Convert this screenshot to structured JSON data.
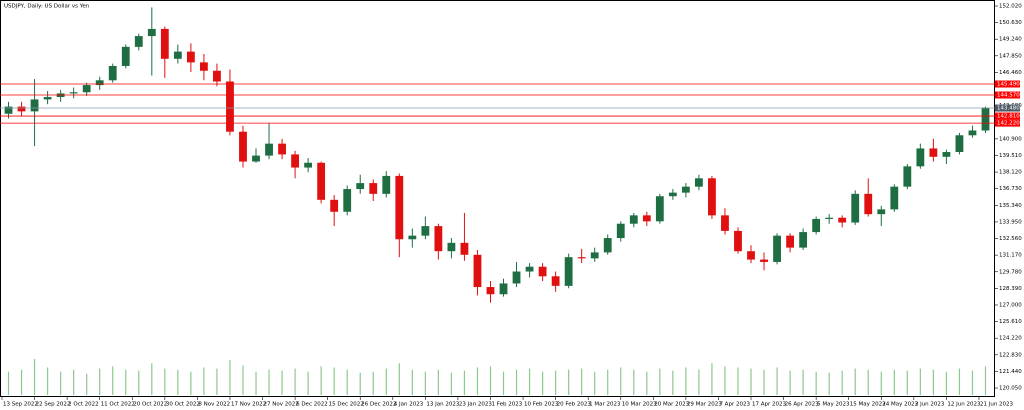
{
  "chart_data": {
    "type": "candlestick",
    "title": "USDJPY, Daily: US Dollar vs Yen",
    "ylim": [
      119.3,
      152.52
    ],
    "yticks": [
      {
        "value": 152.02,
        "label": "152.020"
      },
      {
        "value": 150.63,
        "label": "150.630"
      },
      {
        "value": 149.24,
        "label": "149.240"
      },
      {
        "value": 147.85,
        "label": "147.850"
      },
      {
        "value": 146.46,
        "label": "146.460"
      },
      {
        "value": 143.68,
        "label": "143.680"
      },
      {
        "value": 140.9,
        "label": "140.900"
      },
      {
        "value": 139.51,
        "label": "139.510"
      },
      {
        "value": 138.12,
        "label": "138.120"
      },
      {
        "value": 136.73,
        "label": "136.730"
      },
      {
        "value": 135.34,
        "label": "135.340"
      },
      {
        "value": 133.95,
        "label": "133.950"
      },
      {
        "value": 132.56,
        "label": "132.560"
      },
      {
        "value": 131.17,
        "label": "131.170"
      },
      {
        "value": 129.78,
        "label": "129.780"
      },
      {
        "value": 128.39,
        "label": "128.390"
      },
      {
        "value": 127,
        "label": "127.000"
      },
      {
        "value": 125.61,
        "label": "125.610"
      },
      {
        "value": 124.22,
        "label": "124.220"
      },
      {
        "value": 122.83,
        "label": "122.830"
      },
      {
        "value": 121.44,
        "label": "121.440"
      },
      {
        "value": 120.05,
        "label": "120.050"
      }
    ],
    "xlim": [
      0,
      76
    ],
    "xticks": [
      {
        "value": 0,
        "label": "13 Sep 2022"
      },
      {
        "value": 2.5,
        "label": "22 Sep 2022"
      },
      {
        "value": 5,
        "label": "2 Oct 2022"
      },
      {
        "value": 7.5,
        "label": "11 Oct 2022"
      },
      {
        "value": 10,
        "label": "20 Oct 2022"
      },
      {
        "value": 12.5,
        "label": "30 Oct 2022"
      },
      {
        "value": 15,
        "label": "8 Nov 2022"
      },
      {
        "value": 17.5,
        "label": "17 Nov 2022"
      },
      {
        "value": 20,
        "label": "27 Nov 2022"
      },
      {
        "value": 22.5,
        "label": "6 Dec 2022"
      },
      {
        "value": 25,
        "label": "15 Dec 2022"
      },
      {
        "value": 27.5,
        "label": "26 Dec 2022"
      },
      {
        "value": 30,
        "label": "4 Jan 2023"
      },
      {
        "value": 32.5,
        "label": "13 Jan 2023"
      },
      {
        "value": 35,
        "label": "23 Jan 2023"
      },
      {
        "value": 37.5,
        "label": "1 Feb 2023"
      },
      {
        "value": 40,
        "label": "10 Feb 2023"
      },
      {
        "value": 42.5,
        "label": "20 Feb 2023"
      },
      {
        "value": 45,
        "label": "1 Mar 2023"
      },
      {
        "value": 47.5,
        "label": "10 Mar 2023"
      },
      {
        "value": 50,
        "label": "20 Mar 2023"
      },
      {
        "value": 52.5,
        "label": "29 Mar 2023"
      },
      {
        "value": 55,
        "label": "7 Apr 2023"
      },
      {
        "value": 57.5,
        "label": "17 Apr 2023"
      },
      {
        "value": 60,
        "label": "26 Apr 2023"
      },
      {
        "value": 62.5,
        "label": "5 May 2023"
      },
      {
        "value": 65,
        "label": "15 May 2023"
      },
      {
        "value": 67.5,
        "label": "24 May 2023"
      },
      {
        "value": 70,
        "label": "2 Jun 2023"
      },
      {
        "value": 72.5,
        "label": "12 Jun 2023"
      },
      {
        "value": 75,
        "label": "21 Jun 2023"
      }
    ],
    "up_color": "#1f6e43",
    "down_color": "#e01010",
    "volume_color": "#8cc98c",
    "levels_color": "#ff0000",
    "price_line_color": "#8a9aa8",
    "levels": [
      {
        "value": 145.49,
        "label": "145.490"
      },
      {
        "value": 144.57,
        "label": "144.570"
      },
      {
        "value": 142.81,
        "label": "142.810"
      },
      {
        "value": 142.22,
        "label": "142.220"
      }
    ],
    "price_line": {
      "value": 143.48,
      "label": "143.480"
    },
    "ohlc": [
      [
        143.0,
        144.0,
        142.6,
        143.6
      ],
      [
        143.6,
        144.0,
        142.8,
        143.2
      ],
      [
        143.2,
        145.9,
        140.3,
        144.2
      ],
      [
        144.2,
        144.9,
        143.8,
        144.4
      ],
      [
        144.4,
        145.0,
        144.0,
        144.7
      ],
      [
        144.7,
        145.2,
        144.3,
        144.8
      ],
      [
        144.8,
        145.6,
        144.5,
        145.4
      ],
      [
        145.4,
        146.1,
        145.0,
        145.8
      ],
      [
        145.8,
        147.2,
        145.6,
        147.0
      ],
      [
        147.0,
        148.8,
        146.8,
        148.6
      ],
      [
        148.6,
        149.7,
        148.3,
        149.5
      ],
      [
        149.5,
        151.9,
        146.2,
        150.1
      ],
      [
        150.1,
        150.3,
        146.0,
        147.6
      ],
      [
        147.6,
        148.8,
        147.2,
        148.2
      ],
      [
        148.2,
        148.9,
        146.5,
        147.3
      ],
      [
        147.3,
        148.0,
        145.8,
        146.6
      ],
      [
        146.6,
        147.2,
        145.3,
        145.7
      ],
      [
        145.7,
        146.7,
        141.2,
        141.5
      ],
      [
        141.5,
        142.0,
        138.5,
        139.0
      ],
      [
        139.0,
        140.1,
        138.9,
        139.5
      ],
      [
        139.5,
        142.2,
        139.2,
        140.5
      ],
      [
        140.5,
        140.9,
        139.2,
        139.6
      ],
      [
        139.6,
        139.9,
        137.6,
        138.5
      ],
      [
        138.5,
        139.3,
        138.1,
        138.9
      ],
      [
        138.9,
        139.0,
        135.5,
        135.8
      ],
      [
        135.8,
        136.2,
        133.6,
        134.8
      ],
      [
        134.8,
        137.0,
        134.5,
        136.7
      ],
      [
        136.7,
        137.9,
        136.3,
        137.2
      ],
      [
        137.2,
        137.5,
        135.7,
        136.3
      ],
      [
        136.3,
        138.2,
        136.0,
        137.8
      ],
      [
        137.8,
        138.0,
        131.0,
        132.5
      ],
      [
        132.5,
        133.4,
        131.8,
        132.8
      ],
      [
        132.8,
        134.4,
        132.5,
        133.6
      ],
      [
        133.6,
        133.8,
        130.8,
        131.5
      ],
      [
        131.5,
        132.6,
        130.9,
        132.2
      ],
      [
        132.2,
        134.7,
        130.7,
        131.2
      ],
      [
        131.2,
        131.6,
        127.8,
        128.5
      ],
      [
        128.5,
        129.0,
        127.2,
        127.9
      ],
      [
        127.9,
        129.2,
        127.7,
        128.8
      ],
      [
        128.8,
        130.6,
        128.5,
        129.8
      ],
      [
        129.8,
        130.5,
        129.3,
        130.2
      ],
      [
        130.2,
        130.5,
        129.0,
        129.4
      ],
      [
        129.4,
        129.8,
        128.1,
        128.6
      ],
      [
        128.6,
        131.3,
        128.4,
        131.0
      ],
      [
        131.0,
        131.7,
        130.5,
        130.9
      ],
      [
        130.9,
        131.8,
        130.6,
        131.4
      ],
      [
        131.4,
        132.9,
        131.2,
        132.6
      ],
      [
        132.6,
        134.0,
        132.3,
        133.8
      ],
      [
        133.8,
        134.7,
        133.5,
        134.5
      ],
      [
        134.5,
        134.8,
        133.6,
        134.0
      ],
      [
        134.0,
        136.3,
        133.8,
        136.1
      ],
      [
        136.1,
        136.7,
        135.8,
        136.4
      ],
      [
        136.4,
        137.2,
        136.0,
        136.9
      ],
      [
        136.9,
        137.9,
        136.6,
        137.6
      ],
      [
        137.6,
        137.8,
        134.2,
        134.5
      ],
      [
        134.5,
        135.1,
        132.9,
        133.2
      ],
      [
        133.2,
        133.5,
        131.3,
        131.5
      ],
      [
        131.5,
        132.0,
        130.5,
        130.8
      ],
      [
        130.8,
        131.4,
        129.9,
        130.6
      ],
      [
        130.6,
        133.0,
        130.4,
        132.8
      ],
      [
        132.8,
        133.0,
        131.4,
        131.8
      ],
      [
        131.8,
        133.4,
        131.6,
        133.1
      ],
      [
        133.1,
        134.4,
        132.9,
        134.2
      ],
      [
        134.2,
        134.6,
        133.8,
        134.3
      ],
      [
        134.3,
        134.5,
        133.5,
        133.9
      ],
      [
        133.9,
        136.6,
        133.7,
        136.3
      ],
      [
        136.3,
        137.6,
        134.4,
        134.6
      ],
      [
        134.6,
        135.3,
        133.6,
        135.0
      ],
      [
        135.0,
        137.1,
        134.8,
        136.9
      ],
      [
        136.9,
        138.8,
        136.7,
        138.6
      ],
      [
        138.6,
        140.5,
        138.4,
        140.1
      ],
      [
        140.1,
        140.9,
        139.0,
        139.4
      ],
      [
        139.4,
        140.0,
        138.8,
        139.8
      ],
      [
        139.8,
        141.4,
        139.6,
        141.2
      ],
      [
        141.2,
        142.0,
        141.0,
        141.6
      ],
      [
        141.6,
        143.6,
        141.4,
        143.5
      ]
    ],
    "volume": [
      22,
      24,
      34,
      26,
      22,
      24,
      20,
      25,
      27,
      24,
      23,
      30,
      25,
      24,
      22,
      26,
      25,
      33,
      28,
      22,
      24,
      23,
      25,
      22,
      27,
      26,
      24,
      21,
      22,
      25,
      30,
      24,
      22,
      24,
      21,
      23,
      26,
      27,
      22,
      24,
      25,
      22,
      23,
      24,
      25,
      22,
      24,
      26,
      24,
      22,
      25,
      23,
      26,
      24,
      30,
      27,
      26,
      25,
      24,
      26,
      23,
      24,
      22,
      21,
      23,
      25,
      24,
      22,
      24,
      23,
      25,
      24,
      22,
      25,
      23,
      27
    ]
  }
}
